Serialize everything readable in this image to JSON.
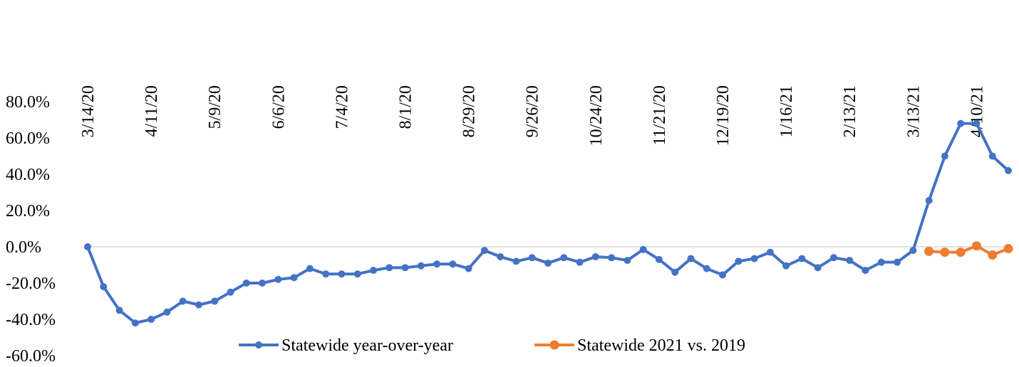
{
  "chart_data": {
    "type": "line",
    "categories": [
      "3/14/20",
      null,
      null,
      null,
      "4/11/20",
      null,
      null,
      null,
      "5/9/20",
      null,
      null,
      null,
      "6/6/20",
      null,
      null,
      null,
      "7/4/20",
      null,
      null,
      null,
      "8/1/20",
      null,
      null,
      null,
      "8/29/20",
      null,
      null,
      null,
      "9/26/20",
      null,
      null,
      null,
      "10/24/20",
      null,
      null,
      null,
      "11/21/20",
      null,
      null,
      null,
      "12/19/20",
      null,
      null,
      null,
      "1/16/21",
      null,
      null,
      null,
      "2/13/21",
      null,
      null,
      null,
      "3/13/21",
      null,
      null,
      null,
      "4/10/21",
      null,
      null
    ],
    "series": [
      {
        "name": "Statewide year-over-year",
        "color": "#4472c4",
        "values": [
          0,
          -22,
          -35,
          -42,
          -40,
          -36,
          -30,
          -32,
          -30,
          -25,
          -20,
          -20,
          -18,
          -17,
          -12,
          -15,
          -15,
          -15,
          -13,
          -11.5,
          -11.5,
          -10.5,
          -9.5,
          -9.5,
          -12,
          -2,
          -5.5,
          -8,
          -6,
          -9,
          -6,
          -8.5,
          -5.5,
          -6,
          -7.5,
          -1.5,
          -7,
          -14,
          -6.5,
          -12,
          -15.5,
          -8,
          -6.5,
          -3,
          -10.5,
          -6.5,
          -11.5,
          -6,
          -7.5,
          -13,
          -8.5,
          -8.5,
          -2,
          25.5,
          50,
          68,
          68,
          50,
          42
        ]
      },
      {
        "name": "Statewide 2021 vs. 2019",
        "color": "#ed7d31",
        "values": [
          null,
          null,
          null,
          null,
          null,
          null,
          null,
          null,
          null,
          null,
          null,
          null,
          null,
          null,
          null,
          null,
          null,
          null,
          null,
          null,
          null,
          null,
          null,
          null,
          null,
          null,
          null,
          null,
          null,
          null,
          null,
          null,
          null,
          null,
          null,
          null,
          null,
          null,
          null,
          null,
          null,
          null,
          null,
          null,
          null,
          null,
          null,
          null,
          null,
          null,
          null,
          null,
          null,
          -2.5,
          -3,
          -3,
          0.5,
          -4.5,
          -1
        ]
      }
    ],
    "ylim": [
      -60,
      80
    ],
    "yticks": [
      {
        "value": 80,
        "label": "80.0%"
      },
      {
        "value": 60,
        "label": "60.0%"
      },
      {
        "value": 40,
        "label": "40.0%"
      },
      {
        "value": 20,
        "label": "20.0%"
      },
      {
        "value": 0,
        "label": "0.0%"
      },
      {
        "value": -20,
        "label": "-20.0%"
      },
      {
        "value": -40,
        "label": "-40.0%"
      },
      {
        "value": -60,
        "label": "-60.0%"
      }
    ],
    "legend": "bottom"
  }
}
